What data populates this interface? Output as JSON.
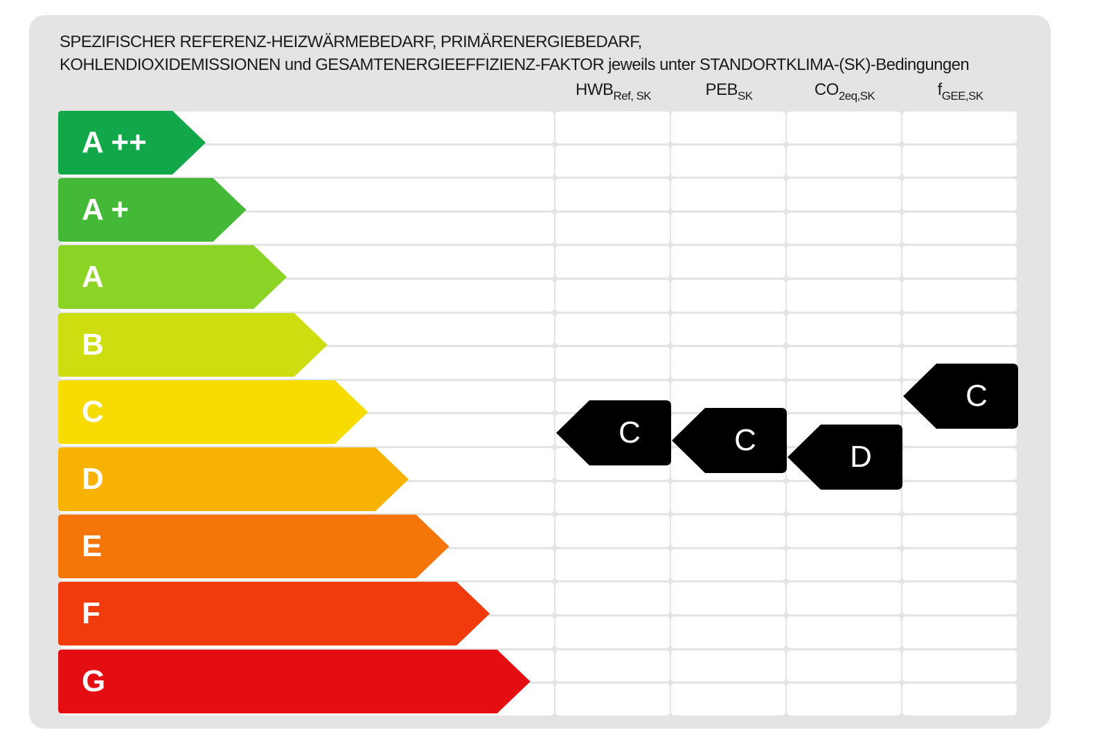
{
  "heading": {
    "line1": "SPEZIFISCHER REFERENZ-HEIZWÄRMEBEDARF, PRIMÄRENERGIEBEDARF,",
    "line2": "KOHLENDIOXIDEMISSIONEN und GESAMTENERGIEEFFIZIENZ-FAKTOR jeweils unter STANDORTKLIMA-(SK)-Bedingungen"
  },
  "columns": [
    {
      "main": "HWB",
      "sub": "Ref, SK"
    },
    {
      "main": "PEB",
      "sub": "SK"
    },
    {
      "main": "CO",
      "sub": "2eq,SK"
    },
    {
      "main": "f",
      "sub": "GEE,SK"
    }
  ],
  "classes": [
    {
      "label": "A ++",
      "color": "#12a84a"
    },
    {
      "label": "A +",
      "color": "#44b837"
    },
    {
      "label": "A",
      "color": "#8bd325"
    },
    {
      "label": "B",
      "color": "#cddd10"
    },
    {
      "label": "C",
      "color": "#f6dc00"
    },
    {
      "label": "D",
      "color": "#f7b203"
    },
    {
      "label": "E",
      "color": "#f47508"
    },
    {
      "label": "F",
      "color": "#f23b0d"
    },
    {
      "label": "G",
      "color": "#e40d12"
    }
  ],
  "ratings": [
    {
      "column": "HWB Ref, SK",
      "value": "C"
    },
    {
      "column": "PEB SK",
      "value": "C"
    },
    {
      "column": "CO 2eq,SK",
      "value": "D"
    },
    {
      "column": "f GEE,SK",
      "value": "C"
    }
  ],
  "marker_color": "#000000"
}
